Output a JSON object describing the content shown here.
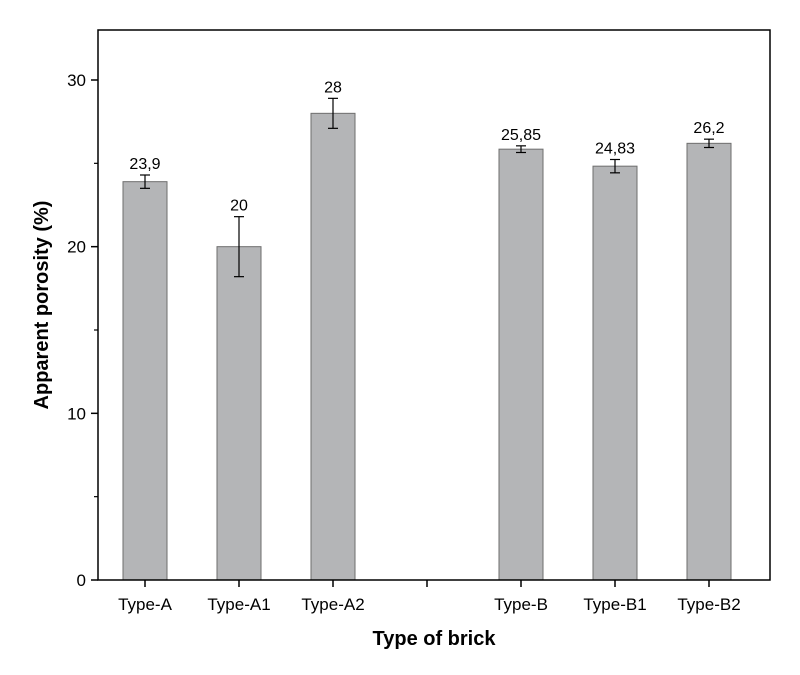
{
  "chart_data": {
    "type": "bar",
    "title": "",
    "xlabel": "Type of brick",
    "ylabel": "Apparent porosity (%)",
    "ylim": [
      0,
      33
    ],
    "yticks": [
      0,
      10,
      20,
      30
    ],
    "grid": false,
    "legend": "none",
    "bar_color": "#b4b5b7",
    "categories": [
      "Type-A",
      "Type-A1",
      "Type-A2",
      "",
      "Type-B",
      "Type-B1",
      "Type-B2"
    ],
    "values": [
      23.9,
      20,
      28,
      null,
      25.85,
      24.83,
      26.2
    ],
    "errors": [
      0.4,
      1.8,
      0.9,
      null,
      0.2,
      0.4,
      0.25
    ],
    "data_labels": [
      "23,9",
      "20",
      "28",
      "",
      "25,85",
      "24,83",
      "26,2"
    ]
  }
}
